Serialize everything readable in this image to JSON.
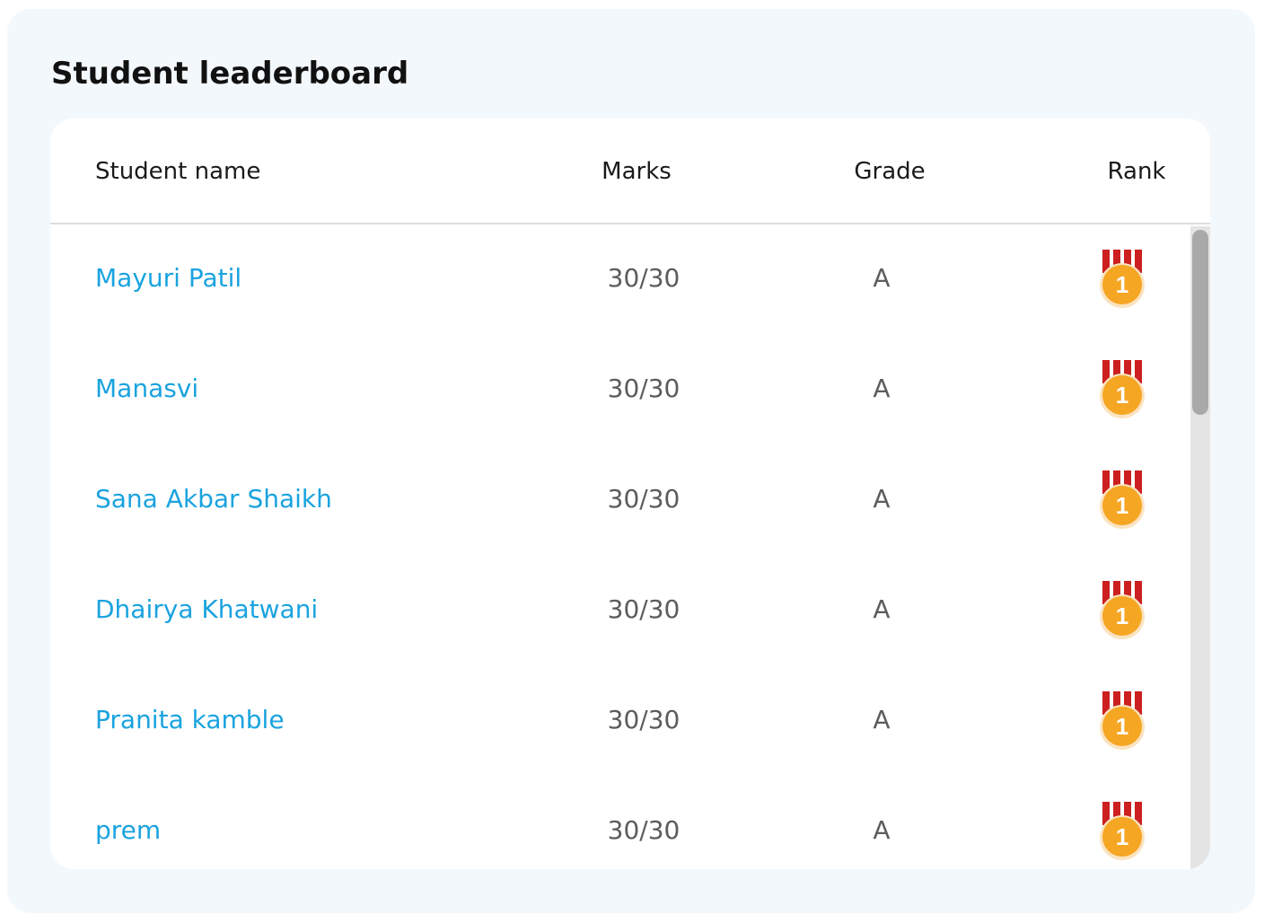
{
  "title": "Student leaderboard",
  "columns": {
    "name": "Student name",
    "marks": "Marks",
    "grade": "Grade",
    "rank": "Rank"
  },
  "rows": [
    {
      "name": "Mayuri Patil",
      "marks": "30/30",
      "grade": "A",
      "rank": "1"
    },
    {
      "name": "Manasvi",
      "marks": "30/30",
      "grade": "A",
      "rank": "1"
    },
    {
      "name": "Sana Akbar Shaikh",
      "marks": "30/30",
      "grade": "A",
      "rank": "1"
    },
    {
      "name": "Dhairya Khatwani",
      "marks": "30/30",
      "grade": "A",
      "rank": "1"
    },
    {
      "name": "Pranita kamble",
      "marks": "30/30",
      "grade": "A",
      "rank": "1"
    },
    {
      "name": "prem",
      "marks": "30/30",
      "grade": "A",
      "rank": "1"
    }
  ],
  "colors": {
    "name_link": "#1aa3df",
    "medal_gold": "#f5a623",
    "ribbon_red": "#cc1f1f",
    "panel_bg": "#f3f8fc"
  },
  "icons": {
    "rank_medal": "medal-icon"
  }
}
